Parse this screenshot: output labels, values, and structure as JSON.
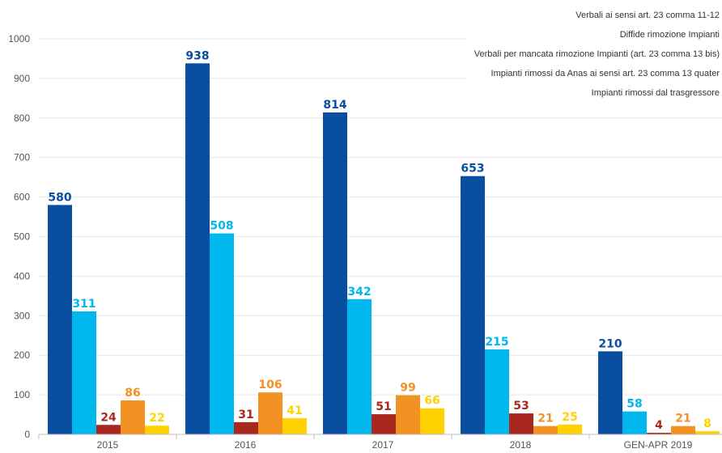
{
  "chart_data": {
    "type": "bar",
    "categories": [
      "2015",
      "2016",
      "2017",
      "2018",
      "GEN-APR 2019"
    ],
    "series": [
      {
        "name": "Verbali ai sensi art. 23 comma 11-12",
        "color": "#0a4ea0",
        "values": [
          580,
          938,
          814,
          653,
          210
        ]
      },
      {
        "name": "Diffide rimozione Impianti",
        "color": "#00b7ee",
        "values": [
          311,
          508,
          342,
          215,
          58
        ]
      },
      {
        "name": "Verbali per mancata rimozione Impianti (art. 23 comma 13 bis)",
        "color": "#a8281e",
        "values": [
          24,
          31,
          51,
          53,
          4
        ]
      },
      {
        "name": "Impianti rimossi da Anas ai sensi art. 23 comma 13 quater",
        "color": "#f29222",
        "values": [
          86,
          106,
          99,
          21,
          21
        ]
      },
      {
        "name": "Impianti rimossi dal trasgressore",
        "color": "#ffd200",
        "values": [
          22,
          41,
          66,
          25,
          8
        ]
      }
    ],
    "yticks": [
      0,
      100,
      200,
      300,
      400,
      500,
      600,
      700,
      800,
      900,
      1000
    ],
    "ylim": [
      0,
      1000
    ],
    "grid": true,
    "legend": "top-right"
  }
}
